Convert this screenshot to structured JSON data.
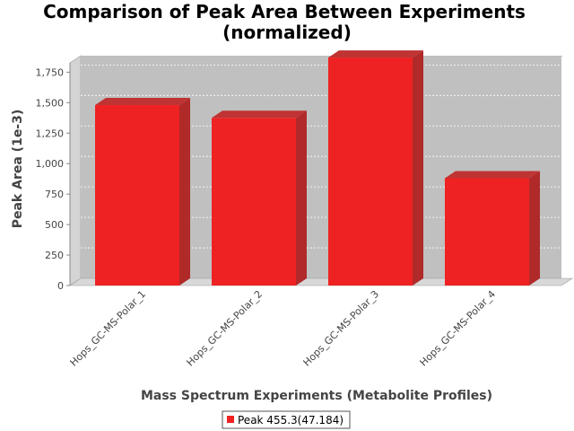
{
  "chart_data": {
    "type": "bar",
    "title": "Comparison of Peak Area Between Experiments",
    "subtitle": "(normalized)",
    "xlabel": "Mass Spectrum Experiments (Metabolite Profiles)",
    "ylabel": "Peak Area (1e-3)",
    "categories": [
      "Hops_GC-MS-Polar_1",
      "Hops_GC-MS-Polar_2",
      "Hops_GC-MS-Polar_3",
      "Hops_GC-MS-Polar_4"
    ],
    "series": [
      {
        "name": "Peak 455.3(47.184)",
        "values": [
          1480,
          1375,
          1870,
          880
        ],
        "color": "#ee2222"
      }
    ],
    "ylim": [
      0,
      1900
    ],
    "yticks": [
      0,
      250,
      500,
      750,
      1000,
      1250,
      1500,
      1750
    ],
    "ytick_labels": [
      "0",
      "250",
      "500",
      "750",
      "1,000",
      "1,250",
      "1,500",
      "1,750"
    ],
    "grid": true,
    "legend_position": "bottom",
    "plot_background": "#c0c0c0"
  }
}
